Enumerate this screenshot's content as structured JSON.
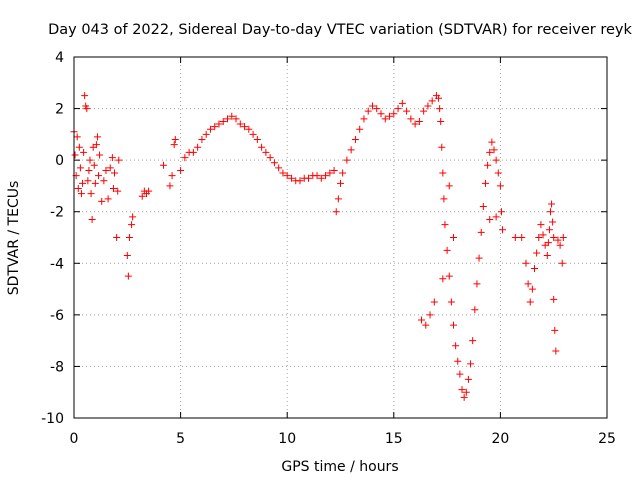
{
  "chart_data": {
    "type": "scatter",
    "title": "Day 043 of 2022, Sidereal Day-to-day VTEC variation (SDTVAR) for receiver reyk",
    "xlabel": "GPS time / hours",
    "ylabel": "SDTVAR / TECUs",
    "xlim": [
      0,
      25
    ],
    "ylim": [
      -10,
      4
    ],
    "xticks": [
      0,
      5,
      10,
      15,
      20,
      25
    ],
    "yticks": [
      -10,
      -8,
      -6,
      -4,
      -2,
      0,
      2,
      4
    ],
    "xtick_labels": [
      "0",
      "5",
      "10",
      "15",
      "20",
      "25"
    ],
    "ytick_labels": [
      "-10",
      "-8",
      "-6",
      "-4",
      "-2",
      "0",
      "2",
      "4"
    ],
    "grid": true,
    "marker": "+",
    "series": [
      {
        "name": "SDTVAR",
        "color": "#ff0000",
        "points": [
          [
            0.0,
            1.1
          ],
          [
            0.05,
            0.2
          ],
          [
            0.1,
            -0.6
          ],
          [
            0.15,
            0.9
          ],
          [
            0.2,
            -1.1
          ],
          [
            0.25,
            0.5
          ],
          [
            0.3,
            -0.3
          ],
          [
            0.35,
            -1.3
          ],
          [
            0.4,
            -0.9
          ],
          [
            0.45,
            0.3
          ],
          [
            0.5,
            2.5
          ],
          [
            0.55,
            2.1
          ],
          [
            0.6,
            2.0
          ],
          [
            0.65,
            -0.8
          ],
          [
            0.7,
            -0.4
          ],
          [
            0.75,
            0.0
          ],
          [
            0.8,
            -1.3
          ],
          [
            0.85,
            -2.3
          ],
          [
            0.9,
            0.5
          ],
          [
            0.95,
            -0.2
          ],
          [
            1.0,
            -0.9
          ],
          [
            1.05,
            0.6
          ],
          [
            1.1,
            0.9
          ],
          [
            1.15,
            -0.6
          ],
          [
            1.2,
            0.2
          ],
          [
            1.3,
            -1.6
          ],
          [
            1.4,
            -0.8
          ],
          [
            1.5,
            -0.4
          ],
          [
            1.6,
            -1.5
          ],
          [
            1.7,
            -0.3
          ],
          [
            1.8,
            0.1
          ],
          [
            1.85,
            -1.1
          ],
          [
            1.9,
            -0.5
          ],
          [
            2.0,
            -3.0
          ],
          [
            2.05,
            -1.2
          ],
          [
            2.1,
            0.0
          ],
          [
            2.5,
            -3.7
          ],
          [
            2.55,
            -4.5
          ],
          [
            2.6,
            -3.0
          ],
          [
            2.7,
            -2.5
          ],
          [
            2.75,
            -2.2
          ],
          [
            3.2,
            -1.4
          ],
          [
            3.3,
            -1.2
          ],
          [
            3.4,
            -1.3
          ],
          [
            3.5,
            -1.2
          ],
          [
            4.2,
            -0.2
          ],
          [
            4.5,
            -1.0
          ],
          [
            4.6,
            -0.6
          ],
          [
            4.7,
            0.6
          ],
          [
            4.75,
            0.8
          ],
          [
            5.0,
            -0.4
          ],
          [
            5.2,
            0.1
          ],
          [
            5.4,
            0.3
          ],
          [
            5.6,
            0.3
          ],
          [
            5.8,
            0.5
          ],
          [
            6.0,
            0.8
          ],
          [
            6.2,
            1.0
          ],
          [
            6.4,
            1.2
          ],
          [
            6.6,
            1.3
          ],
          [
            6.8,
            1.4
          ],
          [
            7.0,
            1.5
          ],
          [
            7.2,
            1.6
          ],
          [
            7.4,
            1.7
          ],
          [
            7.6,
            1.6
          ],
          [
            7.8,
            1.4
          ],
          [
            8.0,
            1.3
          ],
          [
            8.2,
            1.2
          ],
          [
            8.4,
            1.0
          ],
          [
            8.6,
            0.8
          ],
          [
            8.8,
            0.5
          ],
          [
            9.0,
            0.3
          ],
          [
            9.2,
            0.1
          ],
          [
            9.4,
            -0.1
          ],
          [
            9.6,
            -0.3
          ],
          [
            9.8,
            -0.5
          ],
          [
            10.0,
            -0.6
          ],
          [
            10.2,
            -0.7
          ],
          [
            10.4,
            -0.8
          ],
          [
            10.6,
            -0.8
          ],
          [
            10.8,
            -0.7
          ],
          [
            11.0,
            -0.7
          ],
          [
            11.2,
            -0.6
          ],
          [
            11.4,
            -0.6
          ],
          [
            11.6,
            -0.7
          ],
          [
            11.8,
            -0.6
          ],
          [
            12.0,
            -0.5
          ],
          [
            12.2,
            -0.4
          ],
          [
            12.3,
            -2.0
          ],
          [
            12.4,
            -1.5
          ],
          [
            12.5,
            -0.9
          ],
          [
            12.6,
            -0.5
          ],
          [
            12.8,
            0.0
          ],
          [
            13.0,
            0.4
          ],
          [
            13.2,
            0.8
          ],
          [
            13.4,
            1.2
          ],
          [
            13.6,
            1.6
          ],
          [
            13.8,
            1.9
          ],
          [
            14.0,
            2.1
          ],
          [
            14.2,
            2.0
          ],
          [
            14.4,
            1.8
          ],
          [
            14.6,
            1.6
          ],
          [
            14.8,
            1.7
          ],
          [
            15.0,
            1.8
          ],
          [
            15.2,
            2.0
          ],
          [
            15.4,
            2.2
          ],
          [
            15.6,
            1.9
          ],
          [
            15.8,
            1.6
          ],
          [
            16.0,
            1.4
          ],
          [
            16.2,
            1.5
          ],
          [
            16.4,
            1.9
          ],
          [
            16.6,
            2.1
          ],
          [
            16.8,
            2.3
          ],
          [
            17.0,
            2.5
          ],
          [
            17.1,
            2.4
          ],
          [
            17.15,
            2.0
          ],
          [
            17.2,
            1.5
          ],
          [
            17.25,
            0.5
          ],
          [
            17.3,
            -0.5
          ],
          [
            17.35,
            -1.5
          ],
          [
            17.4,
            -2.5
          ],
          [
            17.5,
            -3.5
          ],
          [
            17.6,
            -4.5
          ],
          [
            17.7,
            -5.5
          ],
          [
            17.8,
            -6.4
          ],
          [
            17.9,
            -7.2
          ],
          [
            18.0,
            -7.8
          ],
          [
            18.1,
            -8.3
          ],
          [
            18.2,
            -8.9
          ],
          [
            18.3,
            -9.2
          ],
          [
            18.4,
            -9.0
          ],
          [
            18.5,
            -8.5
          ],
          [
            18.6,
            -7.9
          ],
          [
            18.7,
            -7.0
          ],
          [
            18.8,
            -5.8
          ],
          [
            18.9,
            -4.8
          ],
          [
            19.0,
            -3.8
          ],
          [
            19.1,
            -2.8
          ],
          [
            19.2,
            -1.8
          ],
          [
            19.3,
            -0.9
          ],
          [
            19.4,
            -0.2
          ],
          [
            19.5,
            0.3
          ],
          [
            19.6,
            0.7
          ],
          [
            19.7,
            0.4
          ],
          [
            19.8,
            0.0
          ],
          [
            19.9,
            -0.5
          ],
          [
            20.0,
            -1.0
          ],
          [
            20.05,
            -2.0
          ],
          [
            20.1,
            -2.7
          ],
          [
            19.5,
            -2.3
          ],
          [
            19.8,
            -2.2
          ],
          [
            16.3,
            -6.2
          ],
          [
            16.5,
            -6.4
          ],
          [
            16.7,
            -6.0
          ],
          [
            16.9,
            -5.5
          ],
          [
            17.6,
            -1.0
          ],
          [
            17.8,
            -3.0
          ],
          [
            17.3,
            -4.6
          ],
          [
            20.7,
            -3.0
          ],
          [
            21.0,
            -3.0
          ],
          [
            21.2,
            -4.0
          ],
          [
            21.3,
            -4.8
          ],
          [
            21.4,
            -5.5
          ],
          [
            21.5,
            -5.0
          ],
          [
            21.6,
            -4.2
          ],
          [
            21.7,
            -3.6
          ],
          [
            21.8,
            -3.0
          ],
          [
            21.9,
            -2.5
          ],
          [
            22.0,
            -2.9
          ],
          [
            22.1,
            -3.3
          ],
          [
            22.2,
            -3.7
          ],
          [
            22.25,
            -3.2
          ],
          [
            22.3,
            -2.7
          ],
          [
            22.35,
            -2.0
          ],
          [
            22.4,
            -1.7
          ],
          [
            22.45,
            -2.4
          ],
          [
            22.5,
            -3.0
          ],
          [
            22.5,
            -5.4
          ],
          [
            22.55,
            -6.6
          ],
          [
            22.6,
            -7.4
          ],
          [
            22.7,
            -3.1
          ],
          [
            22.8,
            -3.3
          ],
          [
            22.9,
            -4.0
          ],
          [
            22.95,
            -3.0
          ]
        ]
      }
    ]
  }
}
